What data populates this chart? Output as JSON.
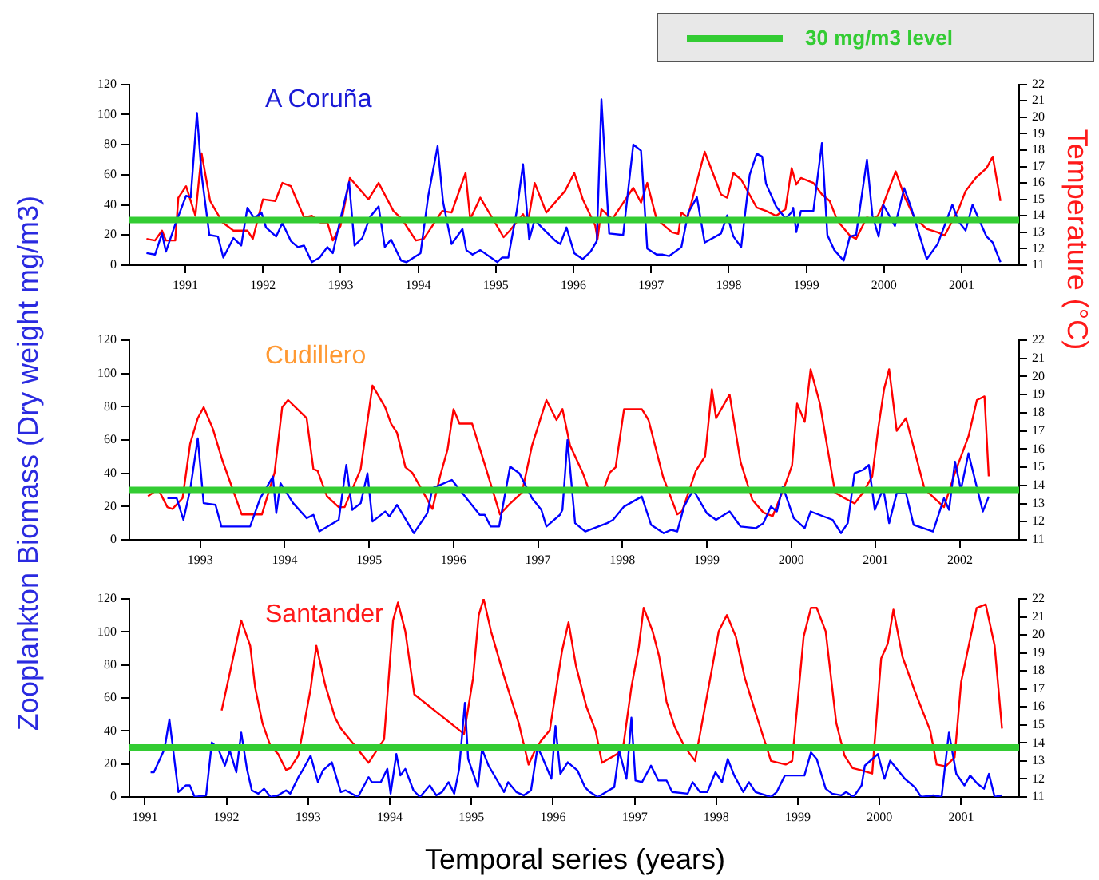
{
  "chart_data": [
    {
      "type": "line",
      "title": "A Coruña",
      "marker": "none",
      "line_style": "solid",
      "grid": false,
      "xlim": [
        1990.28,
        2001.74
      ],
      "ylim": [
        0,
        120
      ],
      "yticks": [
        0,
        20,
        40,
        60,
        80,
        100,
        120
      ],
      "y2lim": [
        11,
        22
      ],
      "y2ticks": [
        11,
        12,
        13,
        14,
        15,
        16,
        17,
        18,
        19,
        20,
        21,
        22
      ],
      "xticks": [
        1991,
        1992,
        1993,
        1994,
        1995,
        1996,
        1997,
        1998,
        1999,
        2000,
        2001
      ],
      "ref_lines": [
        {
          "axis": "y",
          "value": 30,
          "label": "30 mg/m3 level",
          "color": "#33cc33"
        }
      ],
      "series": [
        {
          "color": "#0000ff",
          "x": [
            1990.5,
            1990.61,
            1990.7,
            1990.75,
            1990.87,
            1991.01,
            1991.07,
            1991.15,
            1991.21,
            1991.31,
            1991.42,
            1991.49,
            1991.62,
            1991.72,
            1991.8,
            1991.89,
            1991.98,
            1992.04,
            1992.17,
            1992.25,
            1992.36,
            1992.45,
            1992.53,
            1992.63,
            1992.73,
            1992.83,
            1992.9,
            1993.0,
            1993.11,
            1993.18,
            1993.28,
            1993.38,
            1993.49,
            1993.57,
            1993.65,
            1993.78,
            1993.85,
            1994.03,
            1994.13,
            1994.25,
            1994.32,
            1994.43,
            1994.57,
            1994.62,
            1994.7,
            1994.8,
            1995.02,
            1995.08,
            1995.16,
            1995.27,
            1995.35,
            1995.43,
            1995.5,
            1995.61,
            1995.77,
            1995.83,
            1995.91,
            1996.01,
            1996.12,
            1996.22,
            1996.3,
            1996.36,
            1996.46,
            1996.64,
            1996.77,
            1996.87,
            1996.95,
            1997.07,
            1997.15,
            1997.23,
            1997.39,
            1997.48,
            1997.59,
            1997.69,
            1997.9,
            1997.98,
            1998.06,
            1998.16,
            1998.27,
            1998.36,
            1998.43,
            1998.48,
            1998.61,
            1998.73,
            1998.81,
            1998.83,
            1998.87,
            1998.93,
            1999.09,
            1999.2,
            1999.27,
            1999.36,
            1999.48,
            1999.56,
            1999.64,
            1999.78,
            1999.85,
            1999.93,
            1999.99,
            2000.14,
            2000.26,
            2000.35,
            2000.55,
            2000.69,
            2000.88,
            2000.96,
            2001.05,
            2001.14,
            2001.32,
            2001.4,
            2001.5
          ],
          "values": [
            8,
            7,
            21,
            9,
            27,
            46,
            45,
            101,
            60,
            20,
            19,
            5,
            18,
            13,
            38,
            31,
            35,
            25,
            19,
            28,
            16,
            12,
            13,
            2,
            5,
            12,
            8,
            31,
            55,
            13,
            18,
            32,
            39,
            12,
            17,
            3,
            2,
            8,
            46,
            79,
            42,
            14,
            24,
            10,
            7,
            10,
            2,
            5,
            5,
            36,
            67,
            17,
            30,
            24,
            16,
            14,
            25,
            8,
            4,
            9,
            16,
            110,
            21,
            20,
            80,
            76,
            11,
            7,
            7,
            6,
            12,
            35,
            45,
            15,
            21,
            33,
            19,
            12,
            60,
            74,
            72,
            54,
            39,
            31,
            35,
            38,
            22,
            36,
            36,
            81,
            20,
            10,
            3,
            19,
            20,
            70,
            33,
            19,
            40,
            26,
            51,
            38,
            4,
            14,
            40,
            29,
            23,
            40,
            19,
            15,
            2
          ]
        },
        {
          "color": "#ff0000",
          "axis": "y2",
          "x": [
            1990.5,
            1990.61,
            1990.7,
            1990.75,
            1990.87,
            1990.91,
            1991.01,
            1991.13,
            1991.21,
            1991.32,
            1991.48,
            1991.62,
            1991.8,
            1991.87,
            1992.0,
            1992.16,
            1992.25,
            1992.36,
            1992.53,
            1992.63,
            1992.74,
            1992.83,
            1992.9,
            1993.0,
            1993.12,
            1993.36,
            1993.49,
            1993.68,
            1993.79,
            1993.97,
            1994.07,
            1994.17,
            1994.31,
            1994.43,
            1994.61,
            1994.67,
            1994.8,
            1995.1,
            1995.18,
            1995.35,
            1995.41,
            1995.5,
            1995.65,
            1995.89,
            1996.01,
            1996.12,
            1996.28,
            1996.31,
            1996.36,
            1996.5,
            1996.77,
            1996.87,
            1996.95,
            1997.07,
            1997.27,
            1997.35,
            1997.39,
            1997.47,
            1997.69,
            1997.9,
            1997.98,
            1998.06,
            1998.16,
            1998.36,
            1998.48,
            1998.61,
            1998.73,
            1998.81,
            1998.87,
            1998.93,
            1999.09,
            1999.2,
            1999.3,
            1999.4,
            1999.56,
            1999.64,
            1999.78,
            1999.85,
            1999.92,
            1999.99,
            2000.15,
            2000.27,
            2000.39,
            2000.55,
            2000.69,
            2000.78,
            2000.96,
            2001.05,
            2001.18,
            2001.32,
            2001.4,
            2001.5
          ],
          "values": [
            12.6,
            12.5,
            13.1,
            12.5,
            12.5,
            15.1,
            15.8,
            14.0,
            17.8,
            14.9,
            13.6,
            13.1,
            13.1,
            12.6,
            15.0,
            14.9,
            16.0,
            15.8,
            13.9,
            14.0,
            13.6,
            13.6,
            12.5,
            13.4,
            16.3,
            15.0,
            16.0,
            14.3,
            13.8,
            12.5,
            12.6,
            13.3,
            14.3,
            14.2,
            16.6,
            13.8,
            15.1,
            12.7,
            13.1,
            14.1,
            13.5,
            16.0,
            14.2,
            15.5,
            16.6,
            15.0,
            13.4,
            12.6,
            14.4,
            13.8,
            15.7,
            14.8,
            16.0,
            13.8,
            13.0,
            12.9,
            14.2,
            13.9,
            17.9,
            15.3,
            15.1,
            16.6,
            16.2,
            14.5,
            14.3,
            14.0,
            14.4,
            16.9,
            15.9,
            16.3,
            16.0,
            15.3,
            14.9,
            13.7,
            12.8,
            12.6,
            13.9,
            13.8,
            14.0,
            14.7,
            16.7,
            15.1,
            13.9,
            13.2,
            13.0,
            12.8,
            14.4,
            15.5,
            16.3,
            16.9,
            17.6,
            14.9
          ]
        }
      ]
    },
    {
      "type": "line",
      "title": "Cudillero",
      "ylabel": "Zooplankton Biomass (Dry weight mg/m3)",
      "y2label": "Temperature (°C)",
      "marker": "none",
      "line_style": "solid",
      "grid": false,
      "xlim": [
        1992.16,
        2002.7
      ],
      "ylim": [
        0,
        120
      ],
      "yticks": [
        0,
        20,
        40,
        60,
        80,
        100,
        120
      ],
      "y2lim": [
        11,
        22
      ],
      "y2ticks": [
        11,
        12,
        13,
        14,
        15,
        16,
        17,
        18,
        19,
        20,
        21,
        22
      ],
      "xticks": [
        1993,
        1994,
        1995,
        1996,
        1997,
        1998,
        1999,
        2000,
        2001,
        2002
      ],
      "ref_lines": [
        {
          "axis": "y",
          "value": 30,
          "color": "#33cc33"
        }
      ],
      "series": [
        {
          "color": "#0000ff",
          "x": [
            1992.61,
            1992.72,
            1992.8,
            1992.88,
            1992.97,
            1993.04,
            1993.18,
            1993.25,
            1993.59,
            1993.71,
            1993.86,
            1993.9,
            1993.95,
            1994.1,
            1994.26,
            1994.34,
            1994.41,
            1994.64,
            1994.73,
            1994.8,
            1994.9,
            1994.98,
            1995.04,
            1995.19,
            1995.24,
            1995.33,
            1995.53,
            1995.69,
            1995.75,
            1995.98,
            1996.31,
            1996.37,
            1996.44,
            1996.54,
            1996.67,
            1996.78,
            1996.93,
            1997.04,
            1997.1,
            1997.26,
            1997.29,
            1997.35,
            1997.44,
            1997.56,
            1997.82,
            1997.89,
            1998.02,
            1998.23,
            1998.34,
            1998.49,
            1998.58,
            1998.65,
            1998.73,
            1998.84,
            1999.0,
            1999.11,
            1999.27,
            1999.4,
            1999.58,
            1999.67,
            1999.76,
            1999.83,
            1999.9,
            2000.03,
            2000.16,
            2000.23,
            2000.49,
            2000.59,
            2000.67,
            2000.75,
            2000.85,
            2000.92,
            2000.99,
            2001.09,
            2001.16,
            2001.25,
            2001.36,
            2001.45,
            2001.68,
            2001.81,
            2001.87,
            2001.94,
            2002.01,
            2002.1,
            2002.27,
            2002.34
          ],
          "values": [
            25,
            25,
            12,
            30,
            61,
            22,
            21,
            8,
            8,
            25,
            38,
            16,
            34,
            22,
            13,
            15,
            5,
            12,
            45,
            18,
            22,
            40,
            11,
            17,
            14,
            21,
            4,
            16,
            31,
            36,
            15,
            15,
            8,
            8,
            44,
            40,
            25,
            18,
            8,
            15,
            18,
            60,
            10,
            5,
            10,
            12,
            20,
            26,
            9,
            4,
            6,
            5,
            20,
            30,
            16,
            12,
            17,
            8,
            7,
            10,
            20,
            17,
            32,
            13,
            7,
            17,
            12,
            4,
            10,
            40,
            42,
            45,
            18,
            31,
            10,
            28,
            28,
            9,
            5,
            25,
            18,
            47,
            30,
            52,
            17,
            26
          ]
        },
        {
          "color": "#ff0000",
          "axis": "y2",
          "x": [
            1992.38,
            1992.5,
            1992.61,
            1992.67,
            1992.79,
            1992.88,
            1992.97,
            1993.04,
            1993.15,
            1993.26,
            1993.49,
            1993.73,
            1993.88,
            1993.97,
            1994.04,
            1994.26,
            1994.34,
            1994.39,
            1994.5,
            1994.64,
            1994.71,
            1994.9,
            1995.04,
            1995.19,
            1995.26,
            1995.33,
            1995.43,
            1995.51,
            1995.62,
            1995.75,
            1995.84,
            1995.93,
            1996.0,
            1996.07,
            1996.22,
            1996.38,
            1996.55,
            1996.67,
            1996.81,
            1996.93,
            1997.1,
            1997.22,
            1997.29,
            1997.38,
            1997.53,
            1997.6,
            1997.78,
            1997.85,
            1997.92,
            1998.02,
            1998.23,
            1998.31,
            1998.48,
            1998.65,
            1998.71,
            1998.87,
            1998.98,
            1999.06,
            1999.11,
            1999.27,
            1999.4,
            1999.54,
            1999.67,
            1999.78,
            1999.91,
            2000.01,
            2000.07,
            2000.16,
            2000.23,
            2000.34,
            2000.52,
            2000.63,
            2000.75,
            2000.85,
            2000.96,
            2001.03,
            2001.1,
            2001.16,
            2001.25,
            2001.36,
            2001.58,
            2001.81,
            2001.94,
            2002.1,
            2002.2,
            2002.29,
            2002.34
          ],
          "values": [
            13.4,
            13.8,
            12.8,
            12.7,
            13.3,
            16.3,
            17.7,
            18.3,
            17.1,
            15.4,
            12.4,
            12.4,
            14.7,
            18.3,
            18.7,
            17.7,
            14.9,
            14.8,
            13.4,
            12.8,
            12.8,
            14.9,
            19.5,
            18.3,
            17.4,
            16.9,
            15.0,
            14.7,
            13.8,
            12.7,
            14.5,
            16.0,
            18.2,
            17.4,
            17.4,
            15.0,
            12.4,
            13.0,
            13.6,
            16.2,
            18.7,
            17.6,
            18.2,
            16.2,
            14.7,
            13.8,
            13.8,
            14.7,
            15.0,
            18.2,
            18.2,
            17.6,
            14.5,
            12.4,
            12.6,
            14.8,
            15.6,
            19.3,
            17.7,
            19.0,
            15.3,
            13.2,
            12.5,
            12.3,
            13.8,
            15.1,
            18.5,
            17.5,
            20.4,
            18.5,
            13.6,
            13.3,
            13.0,
            13.6,
            14.5,
            17.1,
            19.3,
            20.4,
            17.0,
            17.7,
            13.8,
            12.8,
            14.7,
            16.7,
            18.7,
            18.9,
            14.5
          ]
        }
      ]
    },
    {
      "type": "line",
      "title": "Santander",
      "xlabel": "Temporal series (years)",
      "marker": "none",
      "line_style": "solid",
      "grid": false,
      "xlim": [
        1990.81,
        2001.71
      ],
      "ylim": [
        0,
        120
      ],
      "yticks": [
        0,
        20,
        40,
        60,
        80,
        100,
        120
      ],
      "y2lim": [
        11,
        22
      ],
      "y2ticks": [
        11,
        12,
        13,
        14,
        15,
        16,
        17,
        18,
        19,
        20,
        21,
        22
      ],
      "xticks": [
        1991,
        1992,
        1993,
        1994,
        1995,
        1996,
        1997,
        1998,
        1999,
        2000,
        2001
      ],
      "ref_lines": [
        {
          "axis": "y",
          "value": 30,
          "color": "#33cc33"
        }
      ],
      "series": [
        {
          "color": "#0000ff",
          "x": [
            1991.07,
            1991.11,
            1991.24,
            1991.3,
            1991.41,
            1991.5,
            1991.55,
            1991.61,
            1991.75,
            1991.82,
            1991.9,
            1991.98,
            1992.04,
            1992.12,
            1992.18,
            1992.25,
            1992.31,
            1992.39,
            1992.46,
            1992.54,
            1992.63,
            1992.73,
            1992.78,
            1992.88,
            1992.93,
            1993.03,
            1993.12,
            1993.18,
            1993.29,
            1993.4,
            1993.46,
            1993.61,
            1993.74,
            1993.78,
            1993.89,
            1993.97,
            1994.01,
            1994.08,
            1994.13,
            1994.19,
            1994.29,
            1994.37,
            1994.49,
            1994.57,
            1994.64,
            1994.72,
            1994.79,
            1994.85,
            1994.92,
            1994.96,
            1995.08,
            1995.13,
            1995.21,
            1995.4,
            1995.45,
            1995.55,
            1995.64,
            1995.73,
            1995.81,
            1995.86,
            1995.98,
            1996.03,
            1996.09,
            1996.18,
            1996.3,
            1996.39,
            1996.45,
            1996.55,
            1996.75,
            1996.81,
            1996.9,
            1996.96,
            1997.01,
            1997.09,
            1997.2,
            1997.29,
            1997.39,
            1997.46,
            1997.65,
            1997.71,
            1997.8,
            1997.89,
            1997.99,
            1998.07,
            1998.14,
            1998.22,
            1998.33,
            1998.4,
            1998.48,
            1998.67,
            1998.74,
            1998.84,
            1999.01,
            1999.08,
            1999.16,
            1999.23,
            1999.34,
            1999.42,
            1999.53,
            1999.59,
            1999.68,
            1999.78,
            1999.82,
            1999.98,
            2000.06,
            2000.13,
            2000.31,
            2000.43,
            2000.51,
            2000.66,
            2000.76,
            2000.85,
            2000.94,
            2001.04,
            2001.11,
            2001.2,
            2001.28,
            2001.34,
            2001.41,
            2001.5
          ],
          "values": [
            15,
            15,
            29,
            47,
            3,
            7,
            7,
            0,
            1,
            33,
            29,
            19,
            28,
            15,
            39,
            17,
            4,
            2,
            5,
            0,
            1,
            4,
            2,
            12,
            16,
            25,
            9,
            16,
            21,
            3,
            4,
            0,
            12,
            9,
            9,
            17,
            2,
            26,
            13,
            17,
            4,
            0,
            7,
            1,
            3,
            9,
            2,
            17,
            57,
            23,
            6,
            29,
            19,
            3,
            9,
            3,
            1,
            4,
            30,
            25,
            11,
            43,
            14,
            21,
            16,
            6,
            3,
            0,
            6,
            28,
            11,
            48,
            10,
            9,
            19,
            10,
            10,
            3,
            2,
            9,
            3,
            3,
            15,
            9,
            23,
            13,
            3,
            9,
            3,
            0,
            3,
            13,
            13,
            13,
            27,
            23,
            5,
            2,
            1,
            3,
            0,
            7,
            19,
            26,
            11,
            22,
            11,
            6,
            0,
            1,
            0,
            39,
            14,
            7,
            13,
            8,
            5,
            14,
            0,
            1
          ]
        },
        {
          "color": "#ff0000",
          "axis": "y2",
          "x": [
            1991.94,
            1992.18,
            1992.29,
            1992.35,
            1992.44,
            1992.54,
            1992.63,
            1992.73,
            1992.78,
            1992.88,
            1993.03,
            1993.1,
            1993.21,
            1993.33,
            1993.4,
            1993.58,
            1993.74,
            1993.93,
            1994.04,
            1994.1,
            1994.19,
            1994.3,
            1994.91,
            1995.02,
            1995.09,
            1995.15,
            1995.24,
            1995.4,
            1995.58,
            1995.7,
            1995.77,
            1995.85,
            1995.96,
            1996.11,
            1996.19,
            1996.28,
            1996.41,
            1996.52,
            1996.6,
            1996.79,
            1996.86,
            1996.96,
            1997.05,
            1997.11,
            1997.22,
            1997.3,
            1997.39,
            1997.49,
            1997.61,
            1997.74,
            1997.95,
            1998.03,
            1998.13,
            1998.24,
            1998.35,
            1998.48,
            1998.67,
            1998.85,
            1998.93,
            1999.07,
            1999.16,
            1999.23,
            1999.34,
            1999.47,
            1999.57,
            1999.67,
            1999.76,
            1999.91,
            2000.02,
            2000.1,
            2000.17,
            2000.28,
            2000.43,
            2000.62,
            2000.7,
            2000.81,
            2000.92,
            2001.0,
            2001.19,
            2001.3,
            2001.41,
            2001.5
          ],
          "values": [
            15.8,
            20.8,
            19.4,
            17.1,
            15.1,
            13.8,
            13.4,
            12.5,
            12.6,
            13.3,
            17.0,
            19.4,
            17.2,
            15.4,
            14.8,
            13.8,
            12.9,
            14.2,
            20.8,
            21.8,
            20.2,
            16.7,
            14.5,
            17.6,
            21.1,
            22.0,
            20.2,
            17.7,
            15.1,
            12.8,
            13.5,
            14.1,
            14.7,
            19.1,
            20.7,
            18.3,
            16.0,
            14.7,
            12.9,
            13.4,
            13.8,
            17.1,
            19.3,
            21.5,
            20.2,
            18.8,
            16.3,
            14.9,
            13.8,
            13.0,
            18.2,
            20.2,
            21.1,
            19.9,
            17.6,
            15.7,
            13.0,
            12.8,
            13.0,
            19.9,
            21.5,
            21.5,
            20.2,
            15.1,
            13.3,
            12.6,
            12.5,
            12.3,
            18.7,
            19.5,
            21.4,
            18.8,
            16.9,
            14.7,
            12.8,
            12.7,
            13.2,
            17.4,
            21.5,
            21.7,
            19.4,
            14.8
          ]
        }
      ]
    }
  ]
}
